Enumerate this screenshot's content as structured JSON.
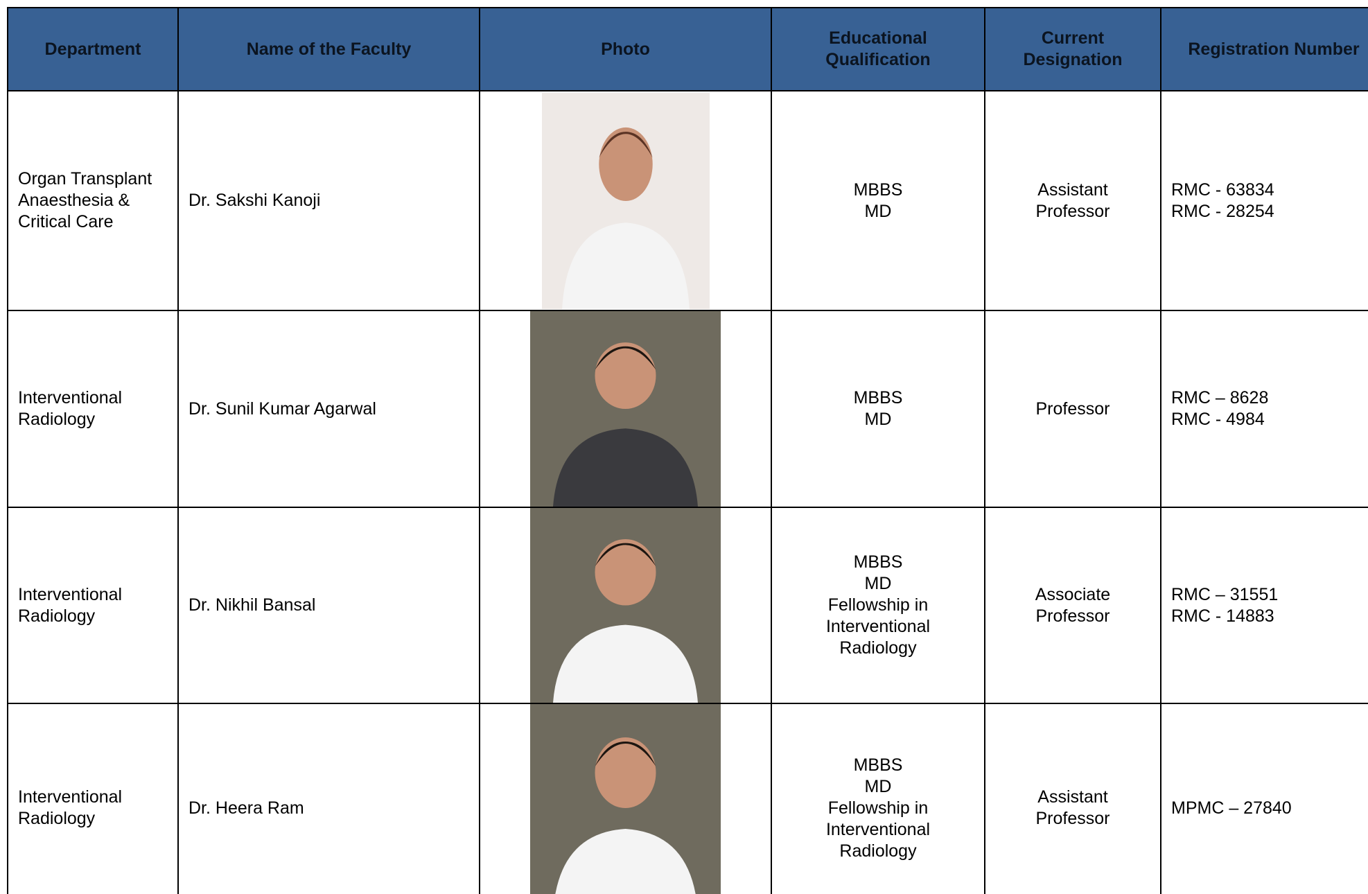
{
  "table": {
    "headers": [
      "Department",
      "Name of the Faculty",
      "Photo",
      "Educational Qualification",
      "Current Designation",
      "Registration Number"
    ],
    "rows": [
      {
        "department": "Organ Transplant Anaesthesia & Critical Care",
        "name": "Dr. Sakshi Kanoji",
        "qualification": [
          "MBBS",
          "MD"
        ],
        "designation": [
          "Assistant",
          "Professor"
        ],
        "registration": [
          "RMC - 63834",
          "RMC - 28254"
        ]
      },
      {
        "department": "Interventional Radiology",
        "name": "Dr. Sunil Kumar Agarwal",
        "qualification": [
          "MBBS",
          "MD"
        ],
        "designation": [
          "Professor"
        ],
        "registration": [
          "RMC – 8628",
          "RMC - 4984"
        ]
      },
      {
        "department": "Interventional Radiology",
        "name": "Dr. Nikhil Bansal",
        "qualification": [
          "MBBS",
          "MD",
          "Fellowship in",
          "Interventional",
          "Radiology"
        ],
        "designation": [
          "Associate",
          "Professor"
        ],
        "registration": [
          "RMC – 31551",
          "RMC - 14883"
        ]
      },
      {
        "department": "Interventional Radiology",
        "name": "Dr. Heera Ram",
        "qualification": [
          "MBBS",
          "MD",
          "Fellowship in",
          "Interventional",
          "Radiology"
        ],
        "designation": [
          "Assistant",
          "Professor"
        ],
        "registration": [
          "MPMC – 27840"
        ]
      }
    ]
  }
}
